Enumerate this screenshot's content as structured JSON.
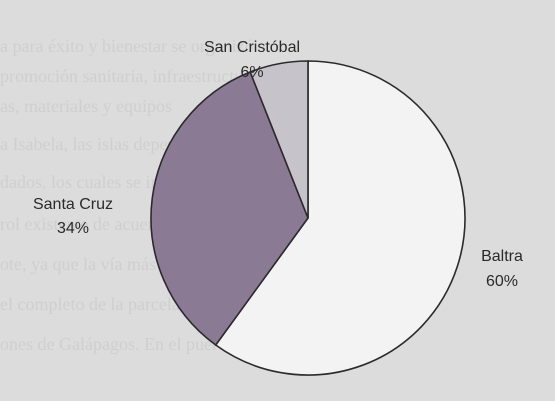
{
  "chart_data": {
    "type": "pie",
    "title": "",
    "slices": [
      {
        "name": "Baltra",
        "pct_label": "60%",
        "value": 60,
        "color": "#f3f3f3"
      },
      {
        "name": "Santa Cruz",
        "pct_label": "34%",
        "value": 34,
        "color": "#8a7a93"
      },
      {
        "name": "San Cristóbal",
        "pct_label": "6%",
        "value": 6,
        "color": "#c7c3ca"
      }
    ],
    "start_angle_deg": 0,
    "direction": "clockwise",
    "outline_color": "#2b2b2b"
  }
}
